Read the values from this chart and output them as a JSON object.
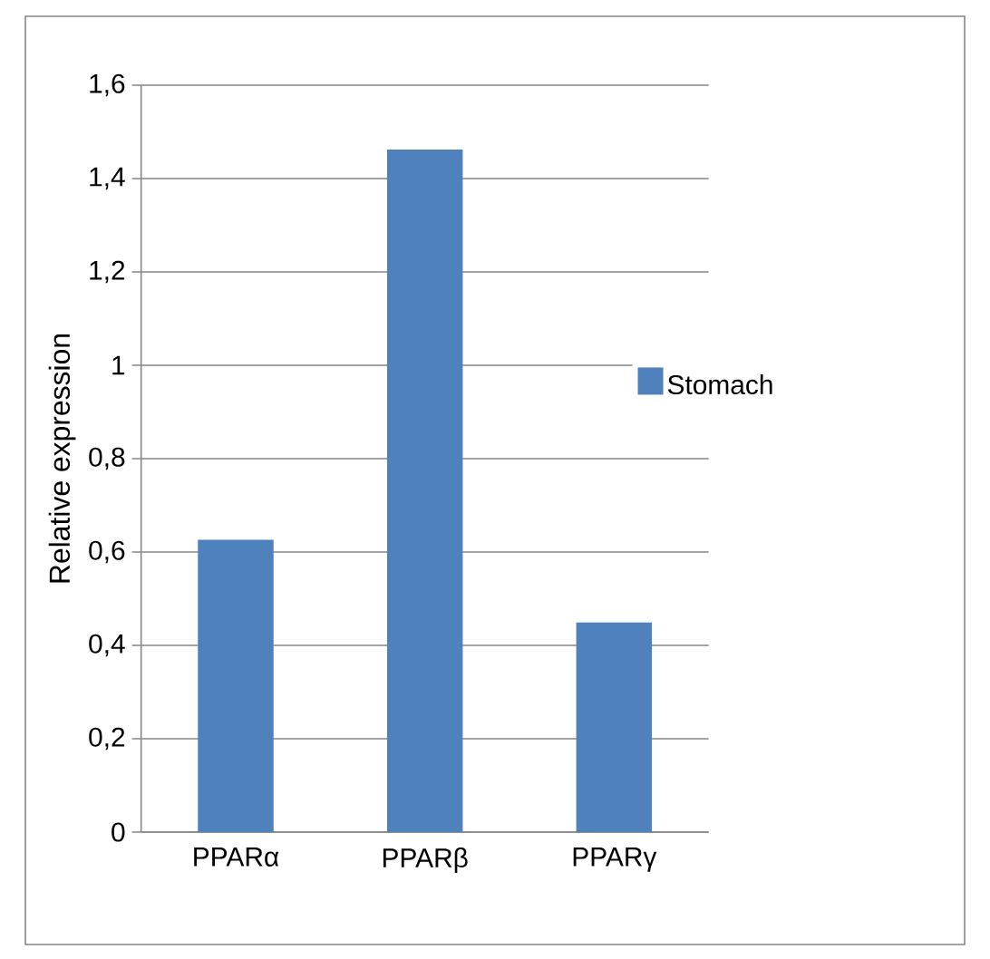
{
  "chart_data": {
    "type": "bar",
    "categories": [
      "PPARα",
      "PPARβ",
      "PPARγ"
    ],
    "series": [
      {
        "name": "Stomach",
        "color": "#4f81bd",
        "values": [
          0.626,
          1.462,
          0.449
        ]
      }
    ],
    "ylabel": "Relative expression",
    "ylim": [
      0,
      1.6
    ],
    "yticks": [
      0,
      {
        "value": 0.2,
        "label": "0,2"
      },
      {
        "value": 0.4,
        "label": "0,4"
      },
      {
        "value": 0.6,
        "label": "0,6"
      },
      {
        "value": 0.8,
        "label": "0,8"
      },
      1,
      {
        "value": 1.2,
        "label": "1,2"
      },
      {
        "value": 1.4,
        "label": "1,4"
      },
      {
        "value": 1.6,
        "label": "1,6"
      }
    ],
    "grid": "y",
    "legend": "right"
  }
}
